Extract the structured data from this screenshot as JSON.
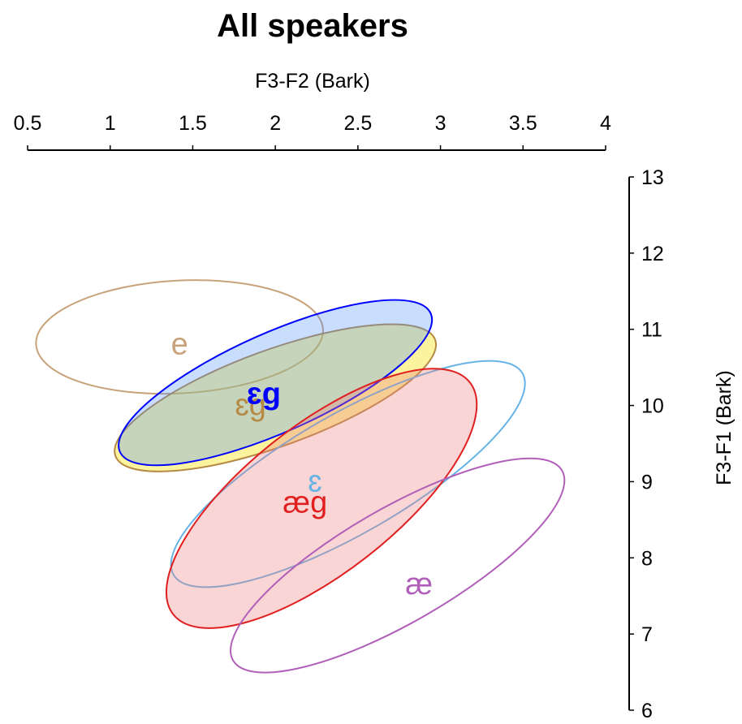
{
  "chart_data": {
    "type": "scatter",
    "title": "All speakers",
    "xlabel": "F3-F2  (Bark)",
    "ylabel": "F3-F1  (Bark)",
    "xlim": [
      0.5,
      4
    ],
    "ylim": [
      6,
      13
    ],
    "x_axis_position": "top",
    "y_axis_position": "right",
    "x_ticks": [
      "0.5",
      "1",
      "1.5",
      "2",
      "2.5",
      "3",
      "3.5",
      "4"
    ],
    "y_ticks": [
      "6",
      "7",
      "8",
      "9",
      "10",
      "11",
      "12",
      "13"
    ],
    "grid": false,
    "legend": "none",
    "ellipses": [
      {
        "label": "e",
        "color": "#c8a27a",
        "fill": "none",
        "fill_opacity": 0,
        "center": [
          1.42,
          10.9
        ],
        "rx": 0.87,
        "ry": 0.74,
        "angle": -3,
        "label_pos": [
          1.42,
          10.8
        ]
      },
      {
        "label": "ɛg",
        "color": "#b58a45",
        "fill": "#f5e000",
        "fill_opacity": 0.38,
        "center": [
          2.0,
          10.1
        ],
        "rx": 1.03,
        "ry": 0.63,
        "angle": -20,
        "label_pos": [
          1.85,
          10.0
        ]
      },
      {
        "label": "ɛg",
        "color": "#0000ff",
        "fill": "#4d8dff",
        "fill_opacity": 0.3,
        "center": [
          2.0,
          10.3
        ],
        "rx": 1.03,
        "ry": 0.65,
        "angle": -24,
        "label_pos": [
          1.93,
          10.15
        ]
      },
      {
        "label": "ɛ",
        "color": "#66b3e6",
        "fill": "none",
        "fill_opacity": 0,
        "center": [
          2.44,
          9.1
        ],
        "rx": 1.22,
        "ry": 0.78,
        "angle": -30,
        "label_pos": [
          2.24,
          9.0
        ]
      },
      {
        "label": "æg",
        "color": "#e02020",
        "fill": "#f08080",
        "fill_opacity": 0.33,
        "center": [
          2.28,
          8.78
        ],
        "rx": 1.14,
        "ry": 0.97,
        "angle": -38,
        "label_pos": [
          2.18,
          8.72
        ]
      },
      {
        "label": "æ",
        "color": "#b060b8",
        "fill": "none",
        "fill_opacity": 0,
        "center": [
          2.74,
          7.9
        ],
        "rx": 1.15,
        "ry": 0.75,
        "angle": -30,
        "label_pos": [
          2.87,
          7.65
        ]
      }
    ]
  }
}
